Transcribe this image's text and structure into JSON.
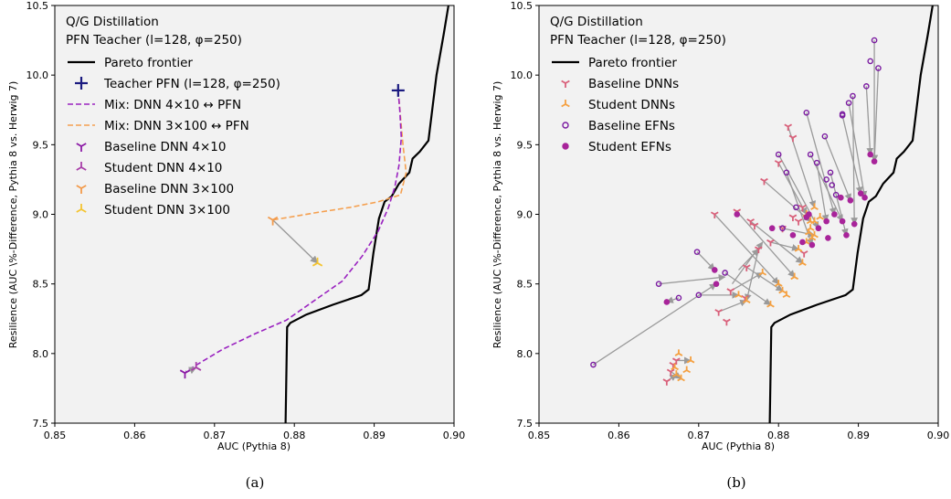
{
  "chart_data": [
    {
      "id": "a",
      "type": "line",
      "caption": "(a)",
      "title_lines": [
        "Q/G Distillation",
        "PFN Teacher (l=128, φ=250)"
      ],
      "xlabel": "AUC (Pythia 8)",
      "ylabel": "Resilience (AUC \\%-Difference, Pythia 8 vs. Herwig 7)",
      "xlim": [
        0.85,
        0.9
      ],
      "ylim": [
        7.5,
        10.5
      ],
      "xticks": [
        "0.85",
        "0.86",
        "0.87",
        "0.88",
        "0.89",
        "0.90"
      ],
      "yticks": [
        "7.5",
        "8.0",
        "8.5",
        "9.0",
        "9.5",
        "10.0",
        "10.5"
      ],
      "grid": false,
      "legend_position": "upper-left",
      "legend": [
        {
          "label": "Pareto frontier",
          "kind": "line",
          "color": "#000000"
        },
        {
          "label": "Teacher PFN (l=128, φ=250)",
          "kind": "plus",
          "color": "#1a1a80"
        },
        {
          "label": "Mix: DNN 4×10 ↔ PFN",
          "kind": "dash",
          "color": "#9a22c0"
        },
        {
          "label": "Mix: DNN 3×100 ↔ PFN",
          "kind": "dash",
          "color": "#f5a050"
        },
        {
          "label": "Baseline DNN 4×10",
          "kind": "tri_down",
          "color": "#8c1aa6"
        },
        {
          "label": "Student DNN 4×10",
          "kind": "tri_up",
          "color": "#a83ea8"
        },
        {
          "label": "Baseline DNN 3×100",
          "kind": "tri_down",
          "color": "#f39a4a"
        },
        {
          "label": "Student DNN 3×100",
          "kind": "tri_up",
          "color": "#f4c430"
        }
      ],
      "pareto_frontier": [
        [
          0.8789,
          7.5
        ],
        [
          0.8791,
          8.19
        ],
        [
          0.8795,
          8.22
        ],
        [
          0.8815,
          8.28
        ],
        [
          0.8848,
          8.35
        ],
        [
          0.8884,
          8.42
        ],
        [
          0.8893,
          8.46
        ],
        [
          0.8899,
          8.72
        ],
        [
          0.8906,
          8.97
        ],
        [
          0.8913,
          9.09
        ],
        [
          0.8922,
          9.13
        ],
        [
          0.8931,
          9.22
        ],
        [
          0.8944,
          9.3
        ],
        [
          0.8948,
          9.4
        ],
        [
          0.8957,
          9.45
        ],
        [
          0.8968,
          9.53
        ],
        [
          0.8978,
          10.0
        ],
        [
          0.8987,
          10.29
        ],
        [
          0.8993,
          10.5
        ]
      ],
      "teacher": [
        [
          0.893,
          9.89
        ]
      ],
      "mix_dnn_4x10": [
        [
          0.893,
          9.89
        ],
        [
          0.8932,
          9.75
        ],
        [
          0.8934,
          9.55
        ],
        [
          0.8931,
          9.35
        ],
        [
          0.8926,
          9.2
        ],
        [
          0.8918,
          9.05
        ],
        [
          0.8905,
          8.88
        ],
        [
          0.8885,
          8.7
        ],
        [
          0.886,
          8.52
        ],
        [
          0.883,
          8.4
        ],
        [
          0.879,
          8.24
        ],
        [
          0.875,
          8.14
        ],
        [
          0.871,
          8.03
        ],
        [
          0.8678,
          7.92
        ],
        [
          0.8664,
          7.87
        ]
      ],
      "mix_dnn_3x100": [
        [
          0.893,
          9.89
        ],
        [
          0.8933,
          9.7
        ],
        [
          0.8936,
          9.5
        ],
        [
          0.894,
          9.3
        ],
        [
          0.8933,
          9.14
        ],
        [
          0.8905,
          9.09
        ],
        [
          0.887,
          9.05
        ],
        [
          0.8825,
          9.01
        ],
        [
          0.8795,
          8.98
        ],
        [
          0.8773,
          8.96
        ]
      ],
      "baseline_dnn_4x10": [
        [
          0.8663,
          7.86
        ]
      ],
      "student_dnn_4x10": [
        [
          0.8677,
          7.9
        ]
      ],
      "baseline_dnn_3x100": [
        [
          0.8773,
          8.96
        ]
      ],
      "student_dnn_3x100": [
        [
          0.8829,
          8.65
        ]
      ],
      "arrows": [
        [
          [
            0.8773,
            8.96
          ],
          [
            0.8829,
            8.65
          ]
        ],
        [
          [
            0.8663,
            7.86
          ],
          [
            0.8677,
            7.9
          ]
        ]
      ]
    },
    {
      "id": "b",
      "type": "scatter",
      "caption": "(b)",
      "title_lines": [
        "Q/G Distillation",
        "PFN Teacher (l=128, φ=250)"
      ],
      "xlabel": "AUC (Pythia 8)",
      "ylabel": "Resilience (AUC \\%-Difference, Pythia 8 vs. Herwig 7)",
      "xlim": [
        0.85,
        0.9
      ],
      "ylim": [
        7.5,
        10.5
      ],
      "xticks": [
        "0.85",
        "0.86",
        "0.87",
        "0.88",
        "0.89",
        "0.90"
      ],
      "yticks": [
        "7.5",
        "8.0",
        "8.5",
        "9.0",
        "9.5",
        "10.0",
        "10.5"
      ],
      "grid": false,
      "legend_position": "upper-left",
      "legend": [
        {
          "label": "Pareto frontier",
          "kind": "line",
          "color": "#000000"
        },
        {
          "label": "Baseline DNNs",
          "kind": "tri_down",
          "color": "#d9607a"
        },
        {
          "label": "Student DNNs",
          "kind": "tri_up",
          "color": "#f5a040"
        },
        {
          "label": "Baseline EFNs",
          "kind": "open_circle",
          "color": "#7a1aa0"
        },
        {
          "label": "Student EFNs",
          "kind": "filled_circle",
          "color": "#a8249a"
        }
      ],
      "pareto_frontier": [
        [
          0.8789,
          7.5
        ],
        [
          0.8791,
          8.19
        ],
        [
          0.8795,
          8.22
        ],
        [
          0.8815,
          8.28
        ],
        [
          0.8848,
          8.35
        ],
        [
          0.8884,
          8.42
        ],
        [
          0.8893,
          8.46
        ],
        [
          0.8899,
          8.72
        ],
        [
          0.8906,
          8.97
        ],
        [
          0.8913,
          9.09
        ],
        [
          0.8922,
          9.13
        ],
        [
          0.8931,
          9.22
        ],
        [
          0.8944,
          9.3
        ],
        [
          0.8948,
          9.4
        ],
        [
          0.8957,
          9.45
        ],
        [
          0.8968,
          9.53
        ],
        [
          0.8978,
          10.0
        ],
        [
          0.8987,
          10.29
        ],
        [
          0.8993,
          10.5
        ]
      ],
      "baseline_dnns": [
        [
          0.872,
          9.0
        ],
        [
          0.8748,
          9.02
        ],
        [
          0.8765,
          8.95
        ],
        [
          0.8782,
          9.24
        ],
        [
          0.88,
          9.37
        ],
        [
          0.8812,
          9.63
        ],
        [
          0.8818,
          9.55
        ],
        [
          0.883,
          9.05
        ],
        [
          0.8825,
          8.95
        ],
        [
          0.8775,
          8.75
        ],
        [
          0.876,
          8.62
        ],
        [
          0.874,
          8.45
        ],
        [
          0.8725,
          8.3
        ],
        [
          0.8735,
          8.23
        ],
        [
          0.8758,
          8.4
        ],
        [
          0.879,
          8.8
        ],
        [
          0.8805,
          8.9
        ],
        [
          0.8832,
          8.72
        ],
        [
          0.877,
          8.92
        ],
        [
          0.8818,
          8.98
        ],
        [
          0.866,
          7.8
        ],
        [
          0.8665,
          7.87
        ],
        [
          0.8668,
          7.92
        ],
        [
          0.8672,
          7.95
        ]
      ],
      "student_dnns": [
        [
          0.884,
          8.95
        ],
        [
          0.884,
          8.9
        ],
        [
          0.8835,
          8.8
        ],
        [
          0.8845,
          8.85
        ],
        [
          0.8835,
          9.0
        ],
        [
          0.8845,
          8.95
        ],
        [
          0.8838,
          8.87
        ],
        [
          0.8842,
          8.83
        ],
        [
          0.882,
          8.55
        ],
        [
          0.883,
          8.65
        ],
        [
          0.88,
          8.5
        ],
        [
          0.879,
          8.35
        ],
        [
          0.876,
          8.38
        ],
        [
          0.875,
          8.42
        ],
        [
          0.878,
          8.58
        ],
        [
          0.8805,
          8.45
        ],
        [
          0.8825,
          8.75
        ],
        [
          0.8845,
          9.05
        ],
        [
          0.8852,
          8.98
        ],
        [
          0.881,
          8.42
        ],
        [
          0.8672,
          7.85
        ],
        [
          0.8675,
          8.0
        ],
        [
          0.8678,
          7.82
        ],
        [
          0.8685,
          7.88
        ],
        [
          0.867,
          7.9
        ],
        [
          0.869,
          7.95
        ]
      ],
      "baseline_efns": [
        [
          0.8568,
          7.92
        ],
        [
          0.865,
          8.5
        ],
        [
          0.8675,
          8.4
        ],
        [
          0.8698,
          8.73
        ],
        [
          0.87,
          8.42
        ],
        [
          0.8733,
          8.58
        ],
        [
          0.88,
          9.43
        ],
        [
          0.8805,
          8.9
        ],
        [
          0.881,
          9.3
        ],
        [
          0.8822,
          9.05
        ],
        [
          0.8835,
          9.73
        ],
        [
          0.884,
          9.43
        ],
        [
          0.8848,
          9.37
        ],
        [
          0.8858,
          9.56
        ],
        [
          0.886,
          9.25
        ],
        [
          0.8865,
          9.3
        ],
        [
          0.8872,
          9.14
        ],
        [
          0.888,
          9.71
        ],
        [
          0.888,
          9.72
        ],
        [
          0.8888,
          9.8
        ],
        [
          0.8893,
          9.85
        ],
        [
          0.891,
          9.92
        ],
        [
          0.8915,
          10.1
        ],
        [
          0.892,
          10.25
        ],
        [
          0.8925,
          10.05
        ],
        [
          0.8867,
          9.21
        ]
      ],
      "student_efns": [
        [
          0.866,
          8.37
        ],
        [
          0.872,
          8.6
        ],
        [
          0.8722,
          8.5
        ],
        [
          0.8748,
          9.0
        ],
        [
          0.8792,
          8.9
        ],
        [
          0.8818,
          8.85
        ],
        [
          0.883,
          8.8
        ],
        [
          0.8838,
          9.0
        ],
        [
          0.8842,
          8.78
        ],
        [
          0.8862,
          8.83
        ],
        [
          0.887,
          9.0
        ],
        [
          0.8878,
          9.12
        ],
        [
          0.888,
          8.95
        ],
        [
          0.8885,
          8.85
        ],
        [
          0.889,
          9.1
        ],
        [
          0.8903,
          9.15
        ],
        [
          0.8908,
          9.12
        ],
        [
          0.8915,
          9.43
        ],
        [
          0.892,
          9.38
        ],
        [
          0.885,
          8.9
        ],
        [
          0.886,
          8.95
        ],
        [
          0.8895,
          8.93
        ],
        [
          0.8835,
          8.98
        ]
      ],
      "arrows": [
        [
          [
            0.8568,
            7.92
          ],
          [
            0.8722,
            8.5
          ]
        ],
        [
          [
            0.865,
            8.5
          ],
          [
            0.8733,
            8.55
          ]
        ],
        [
          [
            0.8675,
            8.4
          ],
          [
            0.866,
            8.37
          ]
        ],
        [
          [
            0.8698,
            8.73
          ],
          [
            0.872,
            8.6
          ]
        ],
        [
          [
            0.87,
            8.42
          ],
          [
            0.875,
            8.42
          ]
        ],
        [
          [
            0.8733,
            8.58
          ],
          [
            0.879,
            8.35
          ]
        ],
        [
          [
            0.88,
            9.43
          ],
          [
            0.885,
            8.9
          ]
        ],
        [
          [
            0.881,
            9.3
          ],
          [
            0.8842,
            8.78
          ]
        ],
        [
          [
            0.8835,
            9.73
          ],
          [
            0.887,
            9.0
          ]
        ],
        [
          [
            0.884,
            9.43
          ],
          [
            0.888,
            8.95
          ]
        ],
        [
          [
            0.8848,
            9.37
          ],
          [
            0.886,
            8.95
          ]
        ],
        [
          [
            0.8858,
            9.56
          ],
          [
            0.889,
            9.1
          ]
        ],
        [
          [
            0.8865,
            9.3
          ],
          [
            0.8885,
            8.85
          ]
        ],
        [
          [
            0.888,
            9.71
          ],
          [
            0.8903,
            9.15
          ]
        ],
        [
          [
            0.8888,
            9.8
          ],
          [
            0.8908,
            9.12
          ]
        ],
        [
          [
            0.8893,
            9.85
          ],
          [
            0.8895,
            8.93
          ]
        ],
        [
          [
            0.891,
            9.92
          ],
          [
            0.8915,
            9.43
          ]
        ],
        [
          [
            0.892,
            10.25
          ],
          [
            0.892,
            9.38
          ]
        ],
        [
          [
            0.8925,
            10.05
          ],
          [
            0.892,
            9.38
          ]
        ],
        [
          [
            0.872,
            9.0
          ],
          [
            0.88,
            8.5
          ]
        ],
        [
          [
            0.8748,
            9.02
          ],
          [
            0.882,
            8.55
          ]
        ],
        [
          [
            0.8765,
            8.95
          ],
          [
            0.883,
            8.65
          ]
        ],
        [
          [
            0.8782,
            9.24
          ],
          [
            0.884,
            8.95
          ]
        ],
        [
          [
            0.88,
            9.37
          ],
          [
            0.8835,
            9.0
          ]
        ],
        [
          [
            0.8812,
            9.63
          ],
          [
            0.8845,
            9.05
          ]
        ],
        [
          [
            0.8775,
            8.75
          ],
          [
            0.876,
            8.38
          ]
        ],
        [
          [
            0.876,
            8.62
          ],
          [
            0.8805,
            8.45
          ]
        ],
        [
          [
            0.874,
            8.45
          ],
          [
            0.878,
            8.58
          ]
        ],
        [
          [
            0.8725,
            8.3
          ],
          [
            0.876,
            8.38
          ]
        ],
        [
          [
            0.879,
            8.8
          ],
          [
            0.8825,
            8.75
          ]
        ],
        [
          [
            0.8805,
            8.9
          ],
          [
            0.8845,
            8.85
          ]
        ],
        [
          [
            0.866,
            7.8
          ],
          [
            0.8672,
            7.85
          ]
        ],
        [
          [
            0.8665,
            7.87
          ],
          [
            0.8678,
            7.82
          ]
        ],
        [
          [
            0.8672,
            7.95
          ],
          [
            0.869,
            7.95
          ]
        ],
        [
          [
            0.8742,
            8.5
          ],
          [
            0.878,
            8.8
          ]
        ],
        [
          [
            0.875,
            8.6
          ],
          [
            0.8775,
            8.75
          ]
        ]
      ]
    }
  ]
}
